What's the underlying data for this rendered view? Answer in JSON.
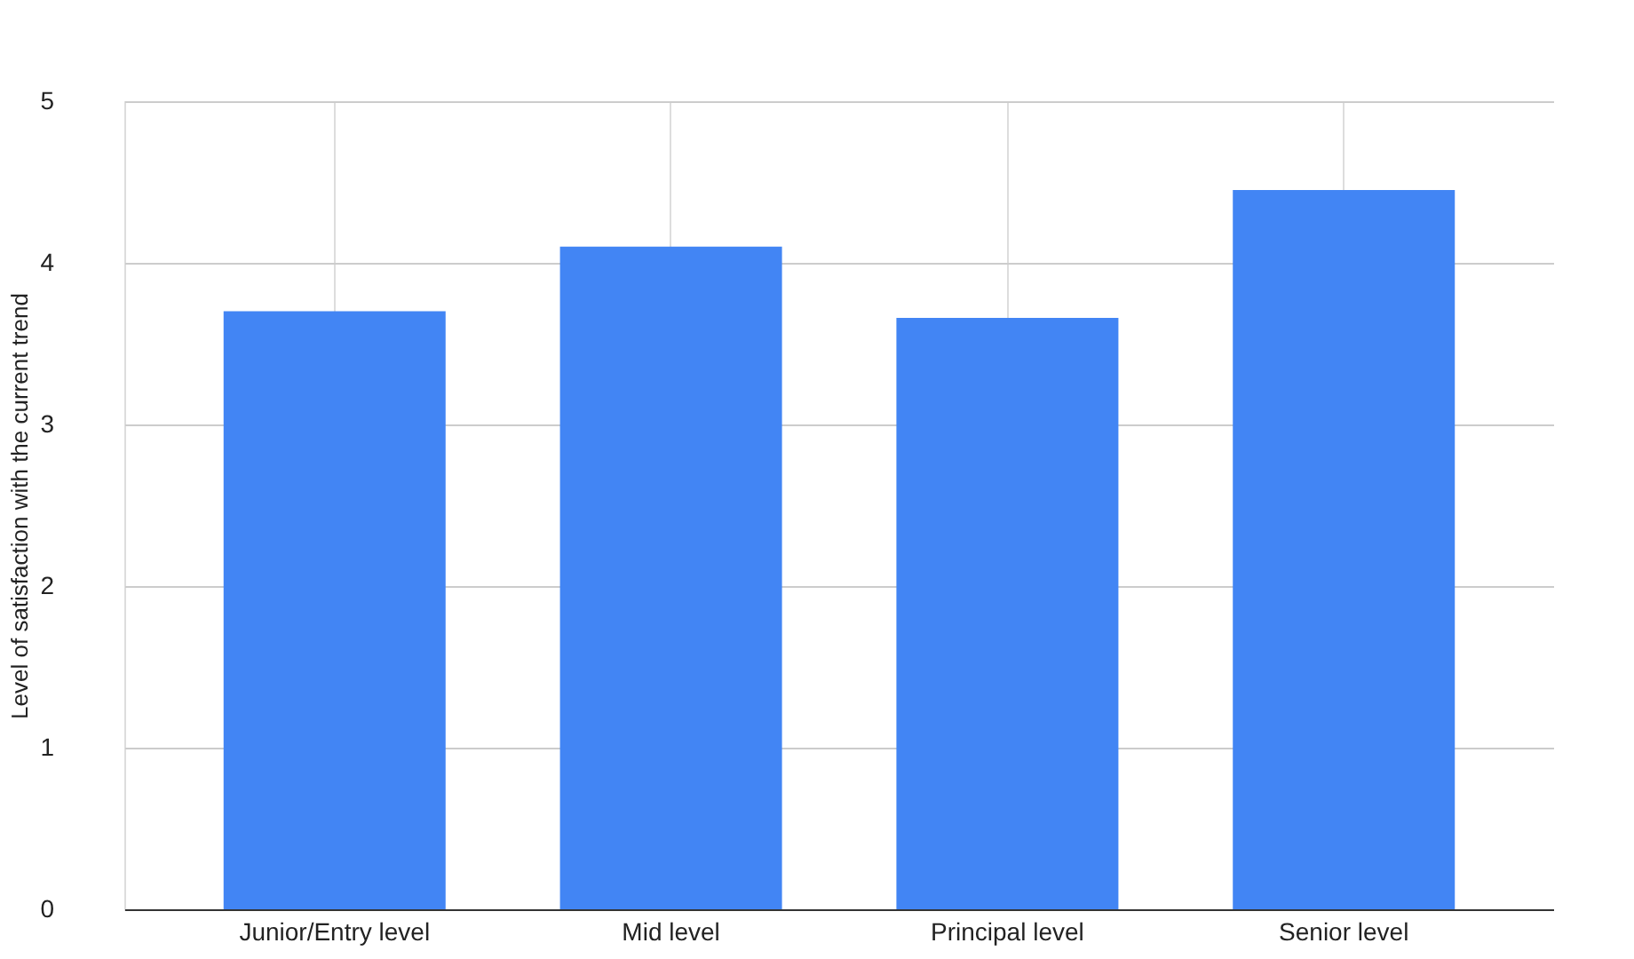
{
  "chart_data": {
    "type": "bar",
    "ylabel": "Level of satisfaction with the current trend",
    "categories": [
      "Junior/Entry level",
      "Mid level",
      "Principal level",
      "Senior level"
    ],
    "values": [
      3.7,
      4.1,
      3.66,
      4.45
    ],
    "color": "#4285f4",
    "ylim": [
      0,
      5
    ],
    "yticks": [
      0,
      1,
      2,
      3,
      4,
      5
    ],
    "grid": true
  }
}
